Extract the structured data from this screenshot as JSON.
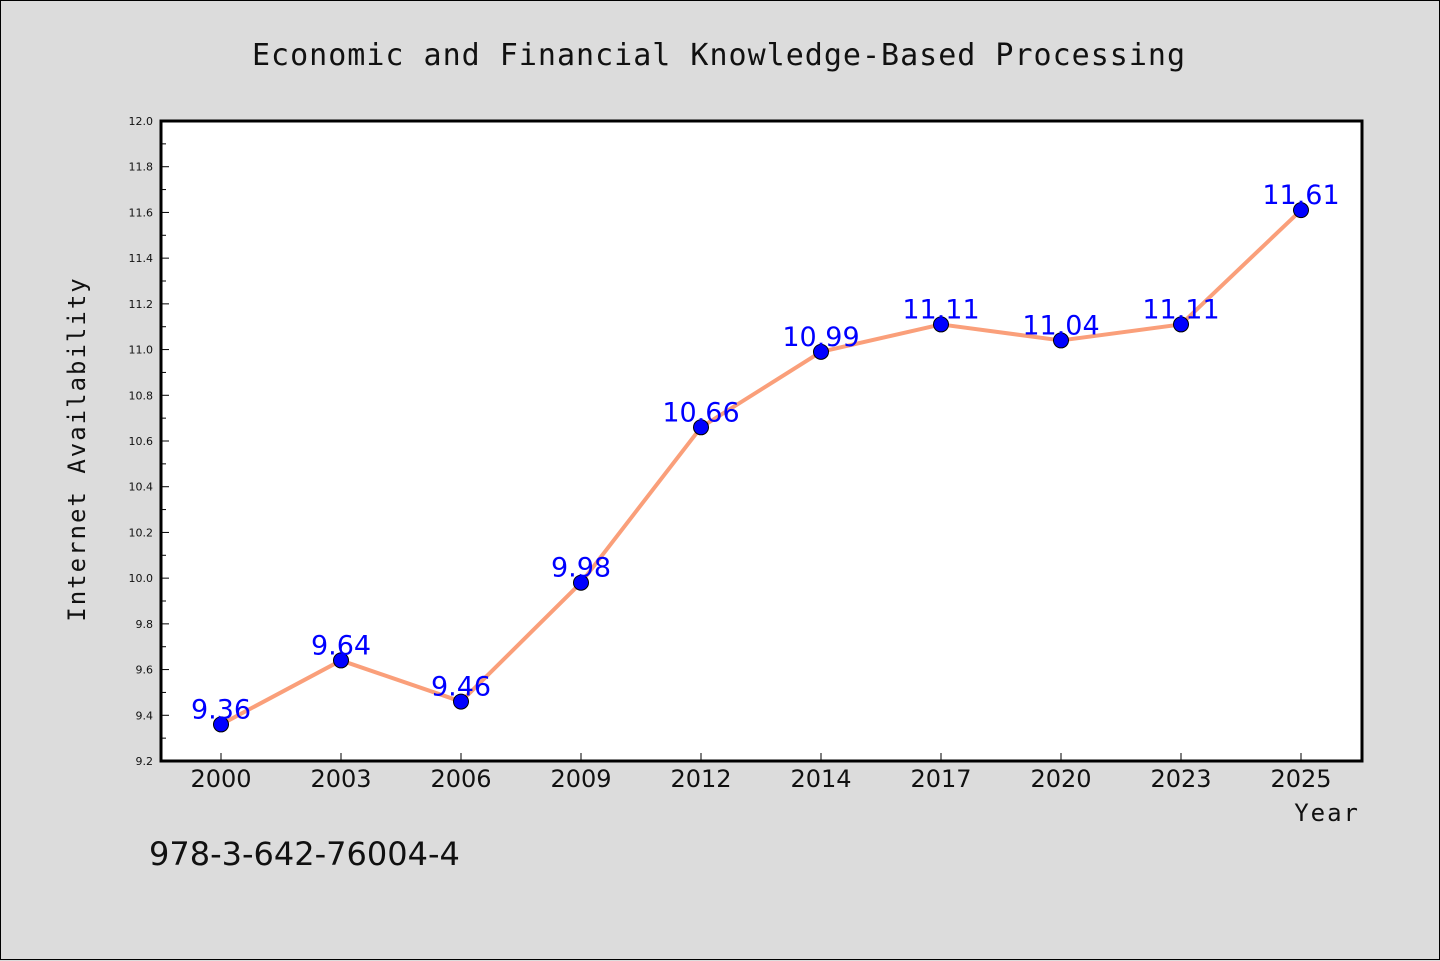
{
  "colors": {
    "background": "#dcdcdc",
    "plot_background": "#ffffff",
    "line": "#fa9f7a",
    "marker": "#0000ff",
    "data_label": "#0000ff",
    "axis": "#000000"
  },
  "footer": {
    "text": "978-3-642-76004-4"
  },
  "chart_data": {
    "type": "line",
    "title": "Economic and Financial Knowledge-Based Processing",
    "xlabel": "Year",
    "ylabel": "Internet Availability",
    "categories": [
      "2000",
      "2003",
      "2006",
      "2009",
      "2012",
      "2014",
      "2017",
      "2020",
      "2023",
      "2025"
    ],
    "series": [
      {
        "values": [
          9.36,
          9.64,
          9.46,
          9.98,
          10.66,
          10.99,
          11.11,
          11.04,
          11.11,
          11.61
        ],
        "labels": [
          "9.36",
          "9.64",
          "9.46",
          "9.98",
          "10.66",
          "10.99",
          "11.11",
          "11.04",
          "11.11",
          "11.61"
        ]
      }
    ],
    "ylim": [
      9.2,
      12.0
    ],
    "yticks": [
      "9.2",
      "9.4",
      "9.6",
      "9.8",
      "10.0",
      "10.2",
      "10.4",
      "10.6",
      "10.8",
      "11.0",
      "11.2",
      "11.4",
      "11.6",
      "11.8",
      "12.0"
    ],
    "grid": false,
    "legend": "none"
  }
}
